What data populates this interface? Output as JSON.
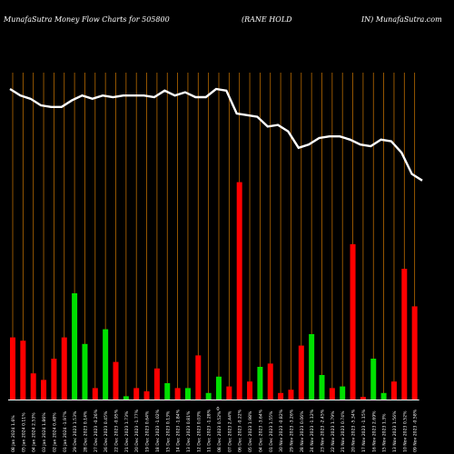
{
  "header": {
    "left": "MunafaSutra  Money Flow  Charts for 505800",
    "mid": "(RANE HOLD",
    "right": "IN) MunafaSutra.com"
  },
  "chart_data": {
    "type": "bar",
    "title": "MunafaSutra Money Flow Charts for 505800 (RANE HOLD IN)",
    "colors": {
      "up": "#00e000",
      "down": "#ff0000",
      "line": "#ffffff",
      "grid": "#b86a00",
      "axis": "#ffffff",
      "background": "#000000"
    },
    "ylim": [
      0,
      100
    ],
    "mid_label": "0",
    "bars": [
      {
        "label": "08 Jan 2024 1.6%",
        "value": 19.0,
        "color": "down"
      },
      {
        "label": "05 Jan 2024 0.11%",
        "value": 18.0,
        "color": "down"
      },
      {
        "label": "04 Jan 2024 2.53%",
        "value": 8.0,
        "color": "down"
      },
      {
        "label": "03 Jan 2024 1.86%",
        "value": 6.0,
        "color": "down"
      },
      {
        "label": "02 Jan 2024 0.48%",
        "value": 12.5,
        "color": "down"
      },
      {
        "label": "01 Jan 2024 -1.97%",
        "value": 19.0,
        "color": "down"
      },
      {
        "label": "29 Dec 2023 1.53%",
        "value": 32.5,
        "color": "up"
      },
      {
        "label": "28 Dec 2023 0.14%",
        "value": 17.0,
        "color": "up"
      },
      {
        "label": "27 Dec 2023 -0.26%",
        "value": 3.5,
        "color": "down"
      },
      {
        "label": "26 Dec 2023 0.45%",
        "value": 21.5,
        "color": "up"
      },
      {
        "label": "22 Dec 2023 -0.95%",
        "value": 11.5,
        "color": "down"
      },
      {
        "label": "21 Dec 2023 1.73%",
        "value": 1.0,
        "color": "up"
      },
      {
        "label": "20 Dec 2023 -1.77%",
        "value": 3.5,
        "color": "down"
      },
      {
        "label": "19 Dec 2023 0.64%",
        "value": 2.5,
        "color": "down"
      },
      {
        "label": "18 Dec 2023 -1.02%",
        "value": 9.5,
        "color": "down"
      },
      {
        "label": "15 Dec 2023 0.13%",
        "value": 5.0,
        "color": "up"
      },
      {
        "label": "14 Dec 2023 -1.84%",
        "value": 3.5,
        "color": "down"
      },
      {
        "label": "13 Dec 2023 0.81%",
        "value": 3.5,
        "color": "up"
      },
      {
        "label": "12 Dec 2023 0.03%",
        "value": 13.5,
        "color": "down"
      },
      {
        "label": "11 Dec 2023 -1.28%",
        "value": 2.0,
        "color": "up"
      },
      {
        "label": "08 Dec 2023 0.52%",
        "value": 7.0,
        "color": "up"
      },
      {
        "label": "07 Dec 2023 2.44%",
        "value": 4.0,
        "color": "down"
      },
      {
        "label": "06 Dec 2023 -0.22%",
        "value": 66.5,
        "color": "down"
      },
      {
        "label": "05 Dec 2023 1.98%",
        "value": 5.5,
        "color": "down"
      },
      {
        "label": "04 Dec 2023 -3.64%",
        "value": 10.0,
        "color": "up"
      },
      {
        "label": "01 Dec 2023 1.55%",
        "value": 11.0,
        "color": "down"
      },
      {
        "label": "30 Nov 2023 -0.82%",
        "value": 2.0,
        "color": "down"
      },
      {
        "label": "29 Nov 2023 -3.26%",
        "value": 3.0,
        "color": "down"
      },
      {
        "label": "28 Nov 2023 0.06%",
        "value": 16.5,
        "color": "down"
      },
      {
        "label": "24 Nov 2023 -1.12%",
        "value": 20.0,
        "color": "up"
      },
      {
        "label": "23 Nov 2023 -2.45%",
        "value": 7.5,
        "color": "up"
      },
      {
        "label": "22 Nov 2023 1.79%",
        "value": 3.5,
        "color": "down"
      },
      {
        "label": "21 Nov 2023 0.74%",
        "value": 4.0,
        "color": "up"
      },
      {
        "label": "20 Nov 2023 -5.34%",
        "value": 47.5,
        "color": "down"
      },
      {
        "label": "17 Nov 2023 -1.15%",
        "value": 0.8,
        "color": "down"
      },
      {
        "label": "16 Nov 2023 2.69%",
        "value": 12.5,
        "color": "up"
      },
      {
        "label": "15 Nov 2023 1.3%",
        "value": 2.0,
        "color": "up"
      },
      {
        "label": "13 Nov 2023 1.56%",
        "value": 5.5,
        "color": "down"
      },
      {
        "label": "10 Nov 2023 0.52%",
        "value": 40.0,
        "color": "down"
      },
      {
        "label": "09 Nov 2023 -0.58%",
        "value": 28.5,
        "color": "down"
      }
    ],
    "line": [
      95,
      93,
      92,
      90,
      89.5,
      89.5,
      91.5,
      93,
      92,
      93,
      92.5,
      93,
      93,
      93,
      92.5,
      94.5,
      93,
      94,
      92.5,
      92.5,
      95,
      94.5,
      87.5,
      87,
      86.5,
      83.5,
      84,
      82,
      77,
      78,
      80,
      80.5,
      80.5,
      79.5,
      78,
      77.5,
      79.5,
      79,
      75.5,
      69,
      67
    ]
  }
}
